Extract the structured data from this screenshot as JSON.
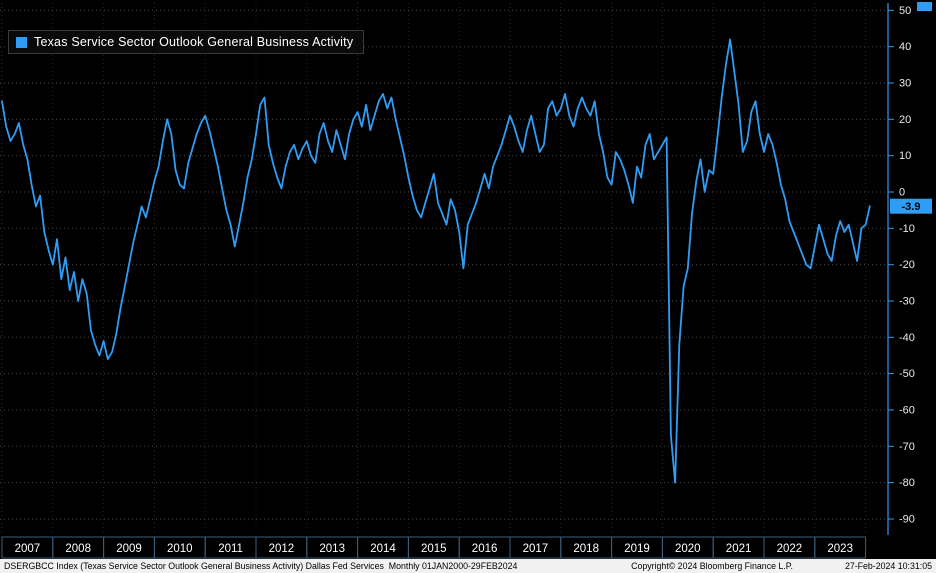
{
  "legend": {
    "label": "Texas Service Sector Outlook General Business Activity",
    "swatch_color": "#2f9df5"
  },
  "y_axis": {
    "axis_color": "#2f9df5",
    "label_color": "#e9e9e9",
    "last_value_label": "-3.9"
  },
  "x_axis": {
    "years": [
      "2007",
      "2008",
      "2009",
      "2010",
      "2011",
      "2012",
      "2013",
      "2014",
      "2015",
      "2016",
      "2017",
      "2018",
      "2019",
      "2020",
      "2021",
      "2022",
      "2023"
    ]
  },
  "status_bar": {
    "left": "DSERGBCC Index (Texas Service Sector Outlook General Business Activity) Dallas Fed Services  Monthly 01JAN2000-29FEB2024",
    "center": "Copyright© 2024 Bloomberg Finance L.P.",
    "right": "27-Feb-2024 10:31:05"
  },
  "chart_data": {
    "type": "line",
    "title": "Texas Service Sector Outlook General Business Activity",
    "frequency": "monthly",
    "x_start": "2007-01",
    "x_end": "2024-02",
    "ylim": [
      -95,
      55
    ],
    "y_ticks": [
      50,
      40,
      30,
      20,
      10,
      0,
      -10,
      -20,
      -30,
      -40,
      -50,
      -60,
      -70,
      -80,
      -90
    ],
    "grid": true,
    "legend_position": "top-left",
    "last_value": -3.9,
    "last_value_label": "-3.9",
    "series": [
      {
        "name": "Texas Service Sector Outlook General Business Activity",
        "color": "#2f9df5",
        "values": [
          25,
          18,
          14,
          16,
          19,
          13,
          9,
          2,
          -4,
          -1,
          -11,
          -16,
          -20,
          -13,
          -24,
          -18,
          -27,
          -22,
          -30,
          -24,
          -28,
          -38,
          -42,
          -45,
          -41,
          -46,
          -44,
          -39,
          -32,
          -26,
          -20,
          -14,
          -9,
          -4,
          -7,
          -2,
          3,
          7,
          14,
          20,
          16,
          6,
          2,
          1,
          8,
          12,
          16,
          19,
          21,
          17,
          12,
          7,
          1,
          -5,
          -9,
          -15,
          -9,
          -3,
          4,
          9,
          16,
          24,
          26,
          13,
          8,
          4,
          1,
          7,
          11,
          13,
          9,
          12,
          14,
          10,
          8,
          16,
          19,
          14,
          11,
          17,
          13,
          9,
          16,
          20,
          22,
          18,
          24,
          17,
          21,
          25,
          27,
          23,
          26,
          20,
          15,
          10,
          4,
          -1,
          -5,
          -7,
          -3,
          1,
          5,
          -3,
          -6,
          -9,
          -2,
          -5,
          -11,
          -21,
          -9,
          -6,
          -3,
          1,
          5,
          1,
          7,
          10,
          13,
          17,
          21,
          18,
          14,
          11,
          17,
          21,
          16,
          11,
          13,
          23,
          25,
          21,
          23,
          27,
          21,
          18,
          23,
          26,
          23,
          21,
          25,
          16,
          11,
          4,
          2,
          11,
          9,
          6,
          2,
          -3,
          7,
          4,
          13,
          16,
          9,
          11,
          13,
          15,
          -67,
          -80,
          -42,
          -26,
          -21,
          -6,
          3,
          9,
          0,
          6,
          5,
          15,
          26,
          35,
          42,
          33,
          24,
          11,
          14,
          22,
          25,
          16,
          11,
          16,
          13,
          8,
          2,
          -2,
          -8,
          -11,
          -14,
          -17,
          -20,
          -21,
          -15,
          -9,
          -13,
          -17,
          -19,
          -12,
          -8,
          -11,
          -9,
          -14,
          -19,
          -10,
          -9,
          -3.9
        ]
      }
    ]
  }
}
